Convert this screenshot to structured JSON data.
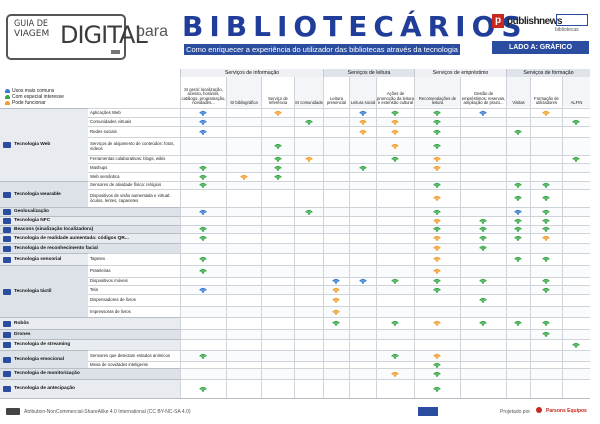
{
  "header": {
    "guide_line1": "GUIA DE",
    "guide_line2": "VIAGEM",
    "guide_digital": "DIGITAL",
    "para": "para",
    "title": "BIBLIOTECÁRIOS",
    "subtitle": "Como enriquecer a experiência do utilizador das bibliotecas através da tecnologia",
    "publisher": "publishnews",
    "partner": "bibliotecas",
    "lado": "LADO A: GRÁFICO"
  },
  "legend": [
    {
      "label": "Usos mais comuns",
      "color": "#3b7bd4"
    },
    {
      "label": "Com especial interesse",
      "color": "#3aa84a"
    },
    {
      "label": "Pode funcionar",
      "color": "#f0a030"
    }
  ],
  "groups": [
    "Serviços de informação",
    "Serviços de leitura",
    "Serviços de empréstimo",
    "Serviços de formação"
  ],
  "columns": [
    "SI geral: localização, acesso, horários, catálogo, programação, novidades...",
    "SI bibliográfica",
    "Serviço de referência",
    "SI comunidade",
    "Leitura presencial",
    "Leitura social",
    "Ações de promoção da leitura e extensão cultural",
    "Recomendações de leitura",
    "Gestão de empréstimos: reservas, ampliação de prazo...",
    "Visitas",
    "Formação de utilizadores",
    "ALFIN"
  ],
  "rows": [
    {
      "cat": "Tecnologia Web",
      "icon": "laptop-icon",
      "sub": "Aplicações Web",
      "m": [
        "b",
        "",
        "o",
        "",
        "",
        "b",
        "g",
        "g",
        "b",
        "",
        "o",
        ""
      ]
    },
    {
      "cat": "",
      "sub": "Comunidades virtuais",
      "m": [
        "b",
        "",
        "",
        "g",
        "",
        "o",
        "o",
        "g",
        "",
        "",
        "",
        "g"
      ]
    },
    {
      "cat": "",
      "sub": "Redes sociais",
      "m": [
        "b",
        "",
        "",
        "",
        "",
        "o",
        "o",
        "g",
        "",
        "g",
        "",
        ""
      ]
    },
    {
      "cat": "",
      "sub": "Serviços de alojamento de conteúdos: fotos, vídeos",
      "m": [
        "",
        "",
        "g",
        "",
        "",
        "",
        "o",
        "g",
        "",
        "",
        "",
        ""
      ]
    },
    {
      "cat": "",
      "sub": "Ferramentas colaborativas: blogs, wikis",
      "m": [
        "",
        "",
        "g",
        "o",
        "",
        "",
        "g",
        "o",
        "",
        "",
        "",
        "g"
      ]
    },
    {
      "cat": "",
      "sub": "Mashups",
      "m": [
        "g",
        "",
        "g",
        "",
        "",
        "g",
        "",
        "o",
        "",
        "",
        "",
        ""
      ]
    },
    {
      "cat": "",
      "sub": "Web semântica",
      "m": [
        "g",
        "o",
        "g",
        "",
        "",
        "",
        "",
        "",
        "",
        "",
        "",
        ""
      ]
    },
    {
      "cat": "Tecnologia wearable",
      "icon": "watch-icon",
      "sub": "Sensores de atividade física: relógios",
      "m": [
        "g",
        "",
        "",
        "",
        "",
        "",
        "",
        "g",
        "",
        "g",
        "g",
        ""
      ]
    },
    {
      "cat": "",
      "sub": "Dispositivos de visão aumentada e virtual: óculos, lentes, capacetes",
      "m": [
        "",
        "",
        "",
        "",
        "",
        "",
        "",
        "o",
        "",
        "g",
        "g",
        ""
      ]
    },
    {
      "cat": "Geolocalização",
      "icon": "location-icon",
      "sub": "",
      "m": [
        "b",
        "",
        "",
        "g",
        "",
        "",
        "",
        "g",
        "",
        "b",
        "g",
        ""
      ]
    },
    {
      "cat": "Tecnologia NFC",
      "icon": "nfc-icon",
      "sub": "",
      "m": [
        "",
        "",
        "",
        "",
        "",
        "",
        "",
        "o",
        "g",
        "g",
        "g",
        ""
      ]
    },
    {
      "cat": "Beacons (sinalização localizadora)",
      "icon": "beacon-icon",
      "sub": "",
      "m": [
        "g",
        "",
        "",
        "",
        "",
        "",
        "",
        "g",
        "g",
        "g",
        "g",
        ""
      ]
    },
    {
      "cat": "Tecnologia de realidade aumentada: códigos QR...",
      "icon": "qr-icon",
      "sub": "",
      "m": [
        "g",
        "",
        "",
        "",
        "",
        "",
        "",
        "o",
        "g",
        "g",
        "o",
        ""
      ]
    },
    {
      "cat": "Tecnologia de reconhecimento facial",
      "icon": "face-icon",
      "sub": "",
      "m": [
        "",
        "",
        "",
        "",
        "",
        "",
        "",
        "o",
        "g",
        "",
        "",
        ""
      ]
    },
    {
      "cat": "Tecnologia sensorial",
      "icon": "hand-icon",
      "sub": "Tapetes",
      "m": [
        "g",
        "",
        "",
        "",
        "",
        "",
        "",
        "o",
        "",
        "g",
        "g",
        ""
      ]
    },
    {
      "cat": "Tecnologia táctil",
      "icon": "tablet-icon",
      "sub": "Prateleiras",
      "m": [
        "g",
        "",
        "",
        "",
        "",
        "",
        "",
        "o",
        "",
        "",
        "",
        ""
      ]
    },
    {
      "cat": "",
      "sub": "Dispositivos móveis",
      "m": [
        "",
        "",
        "",
        "",
        "b",
        "b",
        "g",
        "g",
        "g",
        "",
        "g",
        ""
      ]
    },
    {
      "cat": "",
      "sub": "Tela",
      "m": [
        "b",
        "",
        "",
        "",
        "o",
        "",
        "",
        "g",
        "",
        "",
        "g",
        ""
      ]
    },
    {
      "cat": "",
      "sub": "Dispensadores de livros",
      "m": [
        "",
        "",
        "",
        "",
        "o",
        "",
        "",
        "",
        "g",
        "",
        "",
        ""
      ]
    },
    {
      "cat": "",
      "sub": "Impressoras de livros",
      "m": [
        "",
        "",
        "",
        "",
        "o",
        "",
        "",
        "",
        "",
        "",
        "",
        ""
      ]
    },
    {
      "cat": "Robôs",
      "icon": "robot-icon",
      "sub": "",
      "m": [
        "",
        "",
        "",
        "",
        "g",
        "",
        "g",
        "o",
        "g",
        "g",
        "g",
        ""
      ]
    },
    {
      "cat": "Drones",
      "icon": "drone-icon",
      "sub": "",
      "m": [
        "",
        "",
        "",
        "",
        "",
        "",
        "",
        "",
        "",
        "",
        "g",
        ""
      ]
    },
    {
      "cat": "Tecnologia de streaming",
      "icon": "streaming-icon",
      "sub": "",
      "m": [
        "",
        "",
        "",
        "",
        "",
        "",
        "",
        "",
        "",
        "",
        "",
        "g"
      ]
    },
    {
      "cat": "Tecnologia emocional",
      "icon": "emotion-icon",
      "sub": "Sensores que detectam estados anímicos",
      "m": [
        "g",
        "",
        "",
        "",
        "",
        "",
        "g",
        "o",
        "",
        "",
        "",
        ""
      ]
    },
    {
      "cat": "",
      "sub": "Mesa de novidades inteligente",
      "m": [
        "",
        "",
        "",
        "",
        "",
        "",
        "",
        "g",
        "",
        "",
        "",
        ""
      ]
    },
    {
      "cat": "Tecnologia de monitorização",
      "icon": "monitor-icon",
      "sub": "",
      "m": [
        "",
        "",
        "",
        "",
        "",
        "",
        "o",
        "g",
        "",
        "",
        "",
        ""
      ]
    },
    {
      "cat": "Tecnologia de antecipação",
      "icon": "anticipation-icon",
      "sub": "",
      "m": [
        "g",
        "",
        "",
        "",
        "",
        "",
        "",
        "g",
        "",
        "",
        "",
        ""
      ]
    }
  ],
  "footer": {
    "license": "Atribution-NonCommercial-ShareAlike 4.0 International (CC BY-NC-SA 4.0)",
    "credits": "Projetado por",
    "author": "Parsons Equipos"
  }
}
